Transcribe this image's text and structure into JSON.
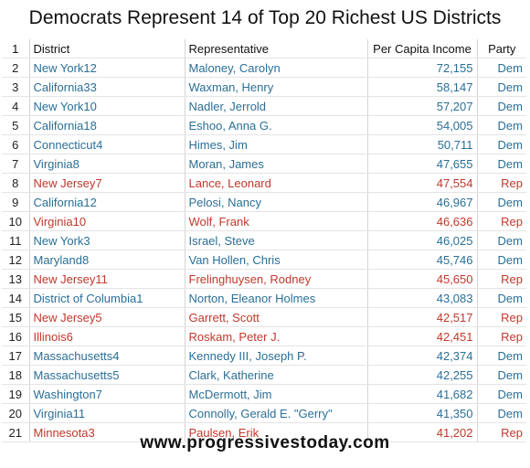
{
  "title": "Democrats Represent 14 of Top 20 Richest US Districts",
  "footer": "www.progressivestoday.com",
  "colors": {
    "dem": "#2a6f97",
    "rep": "#c0392b"
  },
  "header": {
    "num": "1",
    "district": "District",
    "representative": "Representative",
    "income": "Per Capita Income",
    "party": "Party"
  },
  "rows": [
    {
      "num": "2",
      "district": "New York12",
      "representative": "Maloney, Carolyn",
      "income": "72,155",
      "party": "Dem"
    },
    {
      "num": "3",
      "district": "California33",
      "representative": "Waxman, Henry",
      "income": "58,147",
      "party": "Dem"
    },
    {
      "num": "4",
      "district": "New York10",
      "representative": "Nadler, Jerrold",
      "income": "57,207",
      "party": "Dem"
    },
    {
      "num": "5",
      "district": "California18",
      "representative": "Eshoo, Anna G.",
      "income": "54,005",
      "party": "Dem"
    },
    {
      "num": "6",
      "district": "Connecticut4",
      "representative": "Himes, Jim",
      "income": "50,711",
      "party": "Dem"
    },
    {
      "num": "7",
      "district": "Virginia8",
      "representative": "Moran, James",
      "income": "47,655",
      "party": "Dem"
    },
    {
      "num": "8",
      "district": "New Jersey7",
      "representative": "Lance, Leonard",
      "income": "47,554",
      "party": "Rep"
    },
    {
      "num": "9",
      "district": "California12",
      "representative": "Pelosi, Nancy",
      "income": "46,967",
      "party": "Dem"
    },
    {
      "num": "10",
      "district": "Virginia10",
      "representative": "Wolf, Frank",
      "income": "46,636",
      "party": "Rep"
    },
    {
      "num": "11",
      "district": "New York3",
      "representative": "Israel, Steve",
      "income": "46,025",
      "party": "Dem"
    },
    {
      "num": "12",
      "district": "Maryland8",
      "representative": "Van Hollen, Chris",
      "income": "45,746",
      "party": "Dem"
    },
    {
      "num": "13",
      "district": "New Jersey11",
      "representative": "Frelinghuysen, Rodney",
      "income": "45,650",
      "party": "Rep"
    },
    {
      "num": "14",
      "district": "District of Columbia1",
      "representative": "Norton, Eleanor Holmes",
      "income": "43,083",
      "party": "Dem"
    },
    {
      "num": "15",
      "district": "New Jersey5",
      "representative": "Garrett, Scott",
      "income": "42,517",
      "party": "Rep"
    },
    {
      "num": "16",
      "district": "Illinois6",
      "representative": "Roskam, Peter J.",
      "income": "42,451",
      "party": "Rep"
    },
    {
      "num": "17",
      "district": "Massachusetts4",
      "representative": "Kennedy III, Joseph P.",
      "income": "42,374",
      "party": "Dem"
    },
    {
      "num": "18",
      "district": "Massachusetts5",
      "representative": "Clark, Katherine",
      "income": "42,255",
      "party": "Dem"
    },
    {
      "num": "19",
      "district": "Washington7",
      "representative": "McDermott, Jim",
      "income": "41,682",
      "party": "Dem"
    },
    {
      "num": "20",
      "district": "Virginia11",
      "representative": "Connolly, Gerald E. \"Gerry\"",
      "income": "41,350",
      "party": "Dem"
    },
    {
      "num": "21",
      "district": "Minnesota3",
      "representative": "Paulsen, Erik",
      "income": "41,202",
      "party": "Rep"
    }
  ]
}
